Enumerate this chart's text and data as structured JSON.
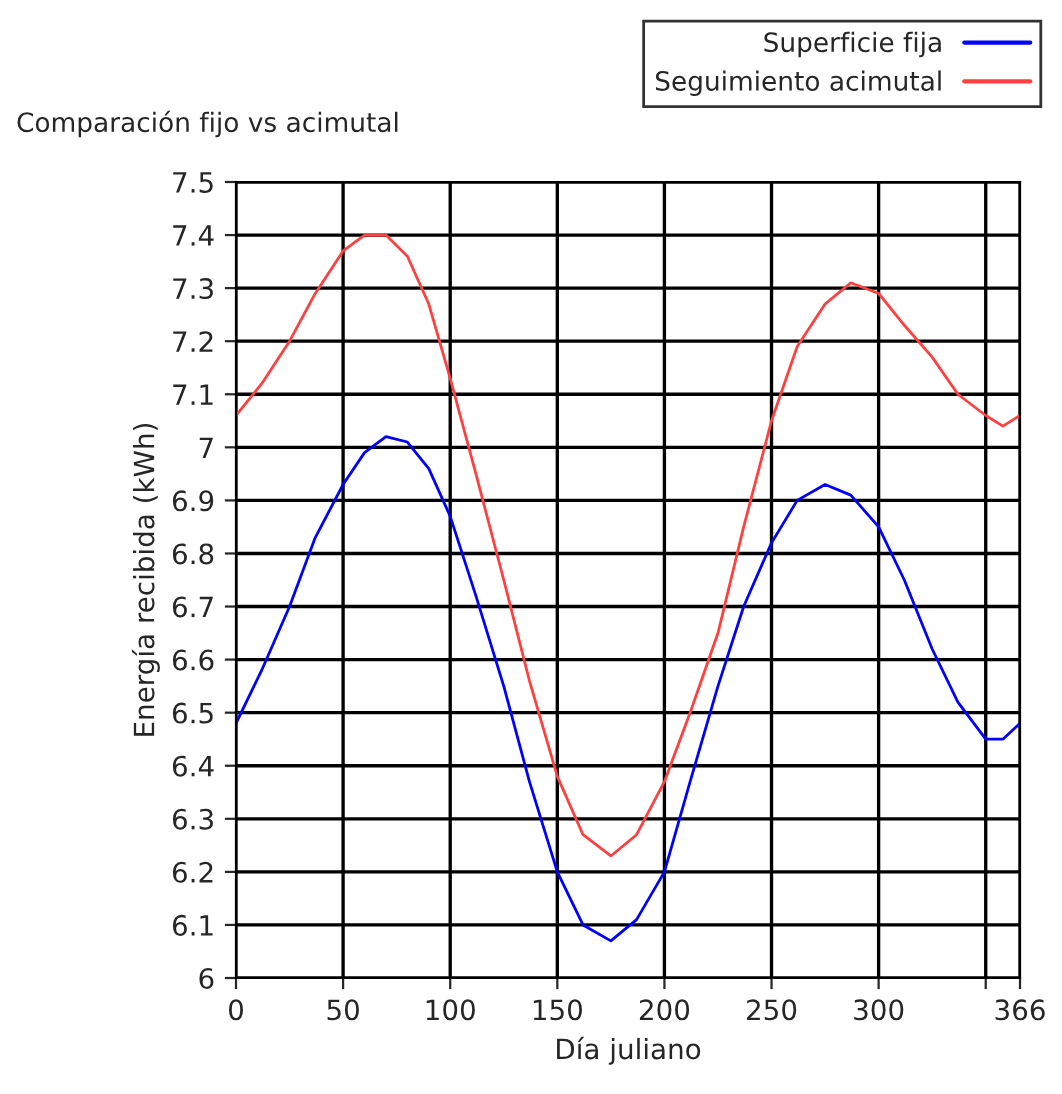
{
  "chart_data": {
    "type": "line",
    "title": "Comparación fijo vs acimutal",
    "xlabel": "Día juliano",
    "ylabel": "Energía recibida (kWh)",
    "x": [
      0,
      12,
      25,
      37,
      50,
      60,
      70,
      80,
      90,
      100,
      112,
      125,
      137,
      150,
      162,
      175,
      187,
      200,
      212,
      225,
      237,
      250,
      262,
      275,
      287,
      300,
      312,
      325,
      337,
      350,
      358,
      366
    ],
    "series": [
      {
        "name": "Superficie fija",
        "color": "#0000ff",
        "values": [
          6.48,
          6.58,
          6.7,
          6.83,
          6.93,
          6.99,
          7.02,
          7.01,
          6.96,
          6.87,
          6.72,
          6.55,
          6.37,
          6.2,
          6.1,
          6.07,
          6.11,
          6.2,
          6.37,
          6.55,
          6.7,
          6.82,
          6.9,
          6.93,
          6.91,
          6.85,
          6.75,
          6.62,
          6.52,
          6.45,
          6.45,
          6.48
        ]
      },
      {
        "name": "Seguimiento acimutal",
        "color": "#ff4040",
        "values": [
          7.06,
          7.12,
          7.2,
          7.29,
          7.37,
          7.4,
          7.4,
          7.36,
          7.27,
          7.13,
          6.95,
          6.75,
          6.56,
          6.38,
          6.27,
          6.23,
          6.27,
          6.37,
          6.5,
          6.65,
          6.85,
          7.05,
          7.19,
          7.27,
          7.31,
          7.29,
          7.23,
          7.17,
          7.1,
          7.06,
          7.04,
          7.06
        ]
      }
    ],
    "xlim": [
      0,
      366
    ],
    "xticks": [
      0,
      50,
      100,
      150,
      200,
      250,
      300,
      {
        "value": 350,
        "label": null
      },
      366
    ],
    "ylim": [
      6,
      7.5
    ],
    "yticks": [
      6,
      6.1,
      6.2,
      6.3,
      6.4,
      6.5,
      6.6,
      6.7,
      6.8,
      6.9,
      7,
      7.1,
      7.2,
      7.3,
      7.4,
      7.5
    ],
    "grid": true,
    "legend": "top right",
    "marker": "none",
    "line_style": "solid"
  }
}
